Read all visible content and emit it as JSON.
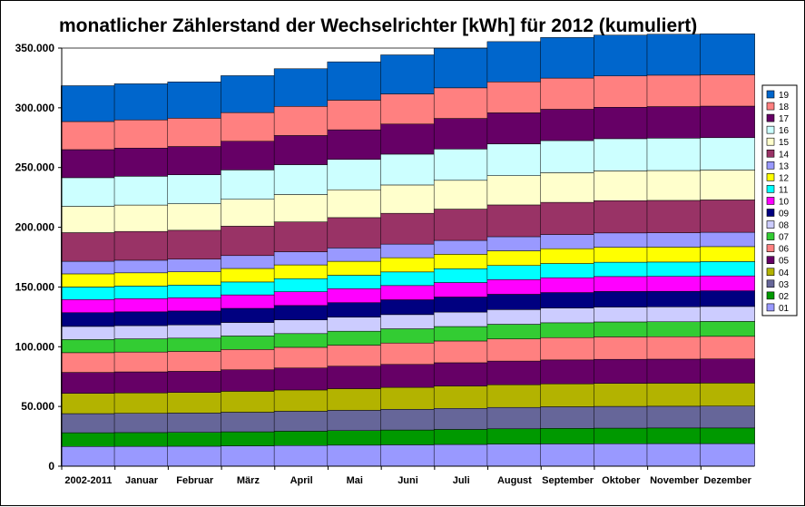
{
  "chart_data": {
    "type": "bar",
    "stacked": true,
    "title": "monatlicher Zählerstand der Wechselrichter [kWh] für 2012 (kumuliert)",
    "xlabel": "",
    "ylabel": "",
    "categories": [
      "2002-2011",
      "Januar",
      "Februar",
      "März",
      "April",
      "Mai",
      "Juni",
      "Juli",
      "August",
      "September",
      "Oktober",
      "November",
      "Dezember"
    ],
    "ylim": [
      0,
      350000
    ],
    "yticks": [
      0,
      50000,
      100000,
      150000,
      200000,
      250000,
      300000,
      350000
    ],
    "ytick_labels": [
      "0",
      "50.000",
      "100.000",
      "150.000",
      "200.000",
      "250.000",
      "300.000",
      "350.000"
    ],
    "grid": "horizontal",
    "legend_position": "right",
    "series": [
      {
        "name": "01",
        "color": "#9999FF",
        "values": [
          16500,
          16600,
          16700,
          17000,
          17300,
          17600,
          17900,
          18200,
          18500,
          18700,
          18800,
          18900,
          18900
        ]
      },
      {
        "name": "02",
        "color": "#009900",
        "values": [
          11500,
          11550,
          11600,
          11800,
          12000,
          12200,
          12400,
          12600,
          12800,
          12950,
          13050,
          13100,
          13100
        ]
      },
      {
        "name": "03",
        "color": "#666699",
        "values": [
          16000,
          16100,
          16200,
          16400,
          16700,
          17000,
          17300,
          17600,
          17900,
          18100,
          18200,
          18200,
          18300
        ]
      },
      {
        "name": "04",
        "color": "#B3B300",
        "values": [
          17000,
          17100,
          17200,
          17500,
          17800,
          18100,
          18400,
          18700,
          19000,
          19200,
          19300,
          19300,
          19300
        ]
      },
      {
        "name": "05",
        "color": "#660066",
        "values": [
          17500,
          17600,
          17700,
          18000,
          18400,
          18800,
          19200,
          19500,
          19800,
          20000,
          20100,
          20100,
          20200
        ]
      },
      {
        "name": "06",
        "color": "#FF8080",
        "values": [
          16500,
          16600,
          16700,
          17000,
          17300,
          17600,
          17900,
          18200,
          18500,
          18700,
          18800,
          18800,
          18900
        ]
      },
      {
        "name": "07",
        "color": "#33CC33",
        "values": [
          11000,
          11050,
          11100,
          11300,
          11500,
          11700,
          11900,
          12100,
          12300,
          12400,
          12500,
          12500,
          12500
        ]
      },
      {
        "name": "08",
        "color": "#CCCCFF",
        "values": [
          11000,
          11050,
          11100,
          11300,
          11500,
          11700,
          11900,
          12100,
          12300,
          12400,
          12500,
          12500,
          12500
        ]
      },
      {
        "name": "09",
        "color": "#000080",
        "values": [
          11500,
          11550,
          11600,
          11800,
          12000,
          12200,
          12400,
          12600,
          12800,
          12900,
          13000,
          13000,
          13100
        ]
      },
      {
        "name": "10",
        "color": "#FF00FF",
        "values": [
          11000,
          11050,
          11100,
          11300,
          11500,
          11700,
          11900,
          12100,
          12300,
          12400,
          12500,
          12500,
          12500
        ]
      },
      {
        "name": "11",
        "color": "#00FFFF",
        "values": [
          10500,
          10550,
          10600,
          10800,
          11000,
          11200,
          11400,
          11600,
          11800,
          11900,
          12000,
          12000,
          12000
        ]
      },
      {
        "name": "12",
        "color": "#FFFF00",
        "values": [
          11000,
          11050,
          11100,
          11300,
          11500,
          11700,
          11900,
          12100,
          12300,
          12400,
          12500,
          12500,
          12500
        ]
      },
      {
        "name": "13",
        "color": "#9999FF",
        "values": [
          10500,
          10550,
          10600,
          10800,
          11000,
          11200,
          11400,
          11600,
          11800,
          11900,
          12000,
          12000,
          12000
        ]
      },
      {
        "name": "14",
        "color": "#993366",
        "values": [
          24000,
          24100,
          24200,
          24600,
          25000,
          25400,
          25800,
          26200,
          26600,
          26900,
          27000,
          27100,
          27100
        ]
      },
      {
        "name": "15",
        "color": "#FFFFCC",
        "values": [
          22000,
          22100,
          22200,
          22500,
          22900,
          23300,
          23700,
          24100,
          24500,
          24800,
          24900,
          25000,
          25000
        ]
      },
      {
        "name": "16",
        "color": "#CCFFFF",
        "values": [
          24000,
          24100,
          24200,
          24600,
          25000,
          25400,
          25800,
          26200,
          26600,
          26900,
          27000,
          27100,
          27100
        ]
      },
      {
        "name": "17",
        "color": "#660066",
        "values": [
          23500,
          23600,
          23700,
          24000,
          24400,
          24800,
          25200,
          25600,
          26000,
          26200,
          26300,
          26400,
          26400
        ]
      },
      {
        "name": "18",
        "color": "#FF8080",
        "values": [
          23500,
          23600,
          23700,
          24000,
          24400,
          24800,
          25200,
          25600,
          25900,
          26100,
          26200,
          26300,
          26300
        ]
      },
      {
        "name": "19",
        "color": "#0066CC",
        "values": [
          30000,
          30200,
          30400,
          30900,
          31500,
          32100,
          32700,
          33200,
          33700,
          34000,
          34200,
          34300,
          34300
        ]
      }
    ]
  }
}
